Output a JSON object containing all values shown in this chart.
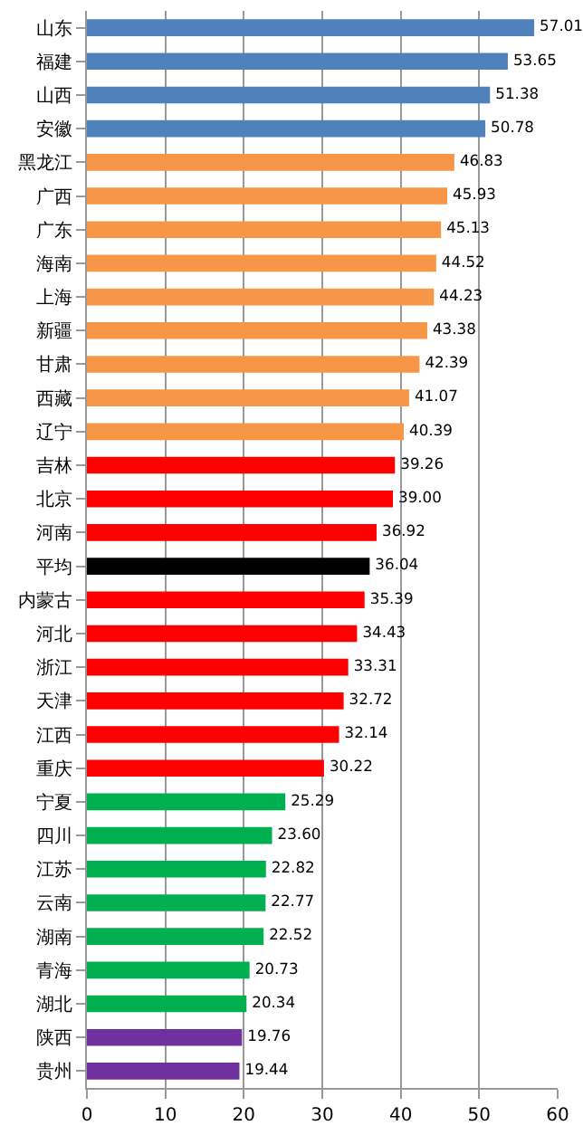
{
  "chart_data": {
    "type": "bar",
    "orientation": "horizontal",
    "categories": [
      "山东",
      "福建",
      "山西",
      "安徽",
      "黑龙江",
      "广西",
      "广东",
      "海南",
      "上海",
      "新疆",
      "甘肃",
      "西藏",
      "辽宁",
      "吉林",
      "北京",
      "河南",
      "平均",
      "内蒙古",
      "河北",
      "浙江",
      "天津",
      "江西",
      "重庆",
      "宁夏",
      "四川",
      "江苏",
      "云南",
      "湖南",
      "青海",
      "湖北",
      "陕西",
      "贵州"
    ],
    "values": [
      57.01,
      53.65,
      51.38,
      50.78,
      46.83,
      45.93,
      45.13,
      44.52,
      44.23,
      43.38,
      42.39,
      41.07,
      40.39,
      39.26,
      39.0,
      36.92,
      36.04,
      35.39,
      34.43,
      33.31,
      32.72,
      32.14,
      30.22,
      25.29,
      23.6,
      22.82,
      22.77,
      22.52,
      20.73,
      20.34,
      19.76,
      19.44
    ],
    "value_labels": [
      "57.01",
      "53.65",
      "51.38",
      "50.78",
      "46.83",
      "45.93",
      "45.13",
      "44.52",
      "44.23",
      "43.38",
      "42.39",
      "41.07",
      "40.39",
      "39.26",
      "39.00",
      "36.92",
      "36.04",
      "35.39",
      "34.43",
      "33.31",
      "32.72",
      "32.14",
      "30.22",
      "25.29",
      "23.60",
      "22.82",
      "22.77",
      "22.52",
      "20.73",
      "20.34",
      "19.76",
      "19.44"
    ],
    "colors": [
      "#4f81bd",
      "#4f81bd",
      "#4f81bd",
      "#4f81bd",
      "#f79646",
      "#f79646",
      "#f79646",
      "#f79646",
      "#f79646",
      "#f79646",
      "#f79646",
      "#f79646",
      "#f79646",
      "#ff0000",
      "#ff0000",
      "#ff0000",
      "#000000",
      "#ff0000",
      "#ff0000",
      "#ff0000",
      "#ff0000",
      "#ff0000",
      "#ff0000",
      "#00b050",
      "#00b050",
      "#00b050",
      "#00b050",
      "#00b050",
      "#00b050",
      "#00b050",
      "#7030a0",
      "#7030a0"
    ],
    "xlim": [
      0,
      60
    ],
    "xticks": [
      0,
      10,
      20,
      30,
      40,
      50,
      60
    ],
    "grid": "x"
  }
}
